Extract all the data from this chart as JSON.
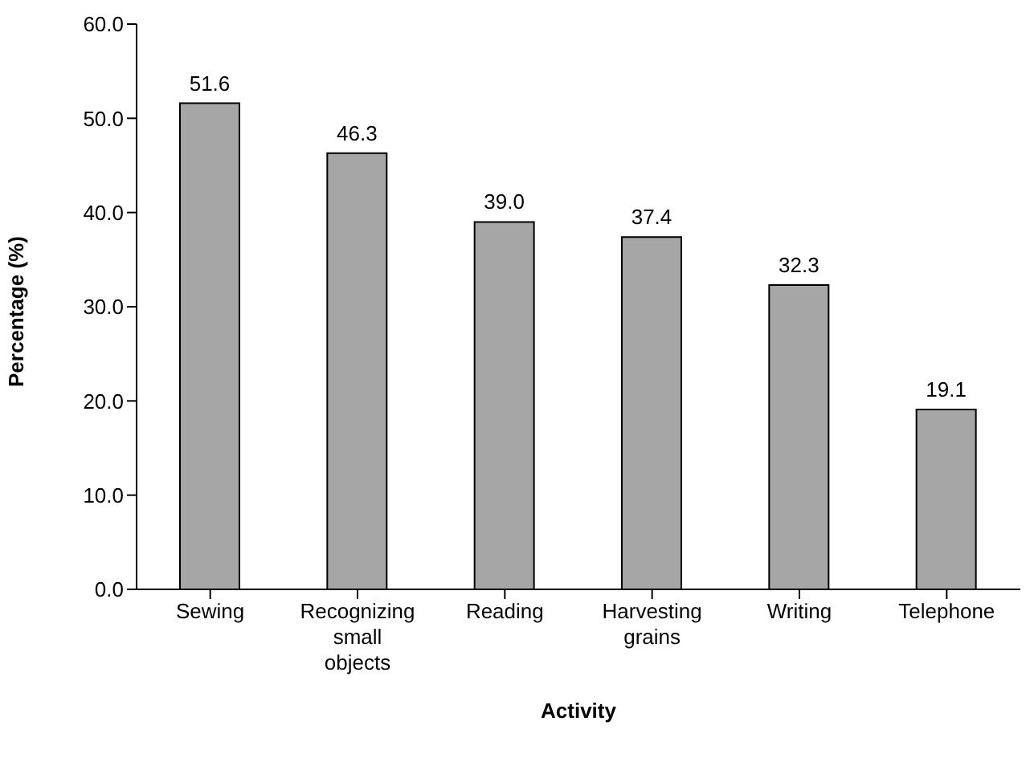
{
  "chart_data": {
    "type": "bar",
    "xlabel": "Activity",
    "ylabel": "Percentage (%)",
    "categories": [
      "Sewing",
      "Recognizing small objects",
      "Reading",
      "Harvesting grains",
      "Writing",
      "Telephone"
    ],
    "values": [
      51.6,
      46.3,
      39.0,
      37.4,
      32.3,
      19.1
    ],
    "value_labels": [
      "51.6",
      "46.3",
      "39.0",
      "37.4",
      "32.3",
      "19.1"
    ],
    "color": "#a6a6a6",
    "ylim": [
      0,
      60
    ],
    "yticks": [
      {
        "value": 0,
        "label": "0.0"
      },
      {
        "value": 10,
        "label": "10.0"
      },
      {
        "value": 20,
        "label": "20.0"
      },
      {
        "value": 30,
        "label": "30.0"
      },
      {
        "value": 40,
        "label": "40.0"
      },
      {
        "value": 50,
        "label": "50.0"
      },
      {
        "value": 60,
        "label": "60.0"
      }
    ],
    "grid": false
  }
}
